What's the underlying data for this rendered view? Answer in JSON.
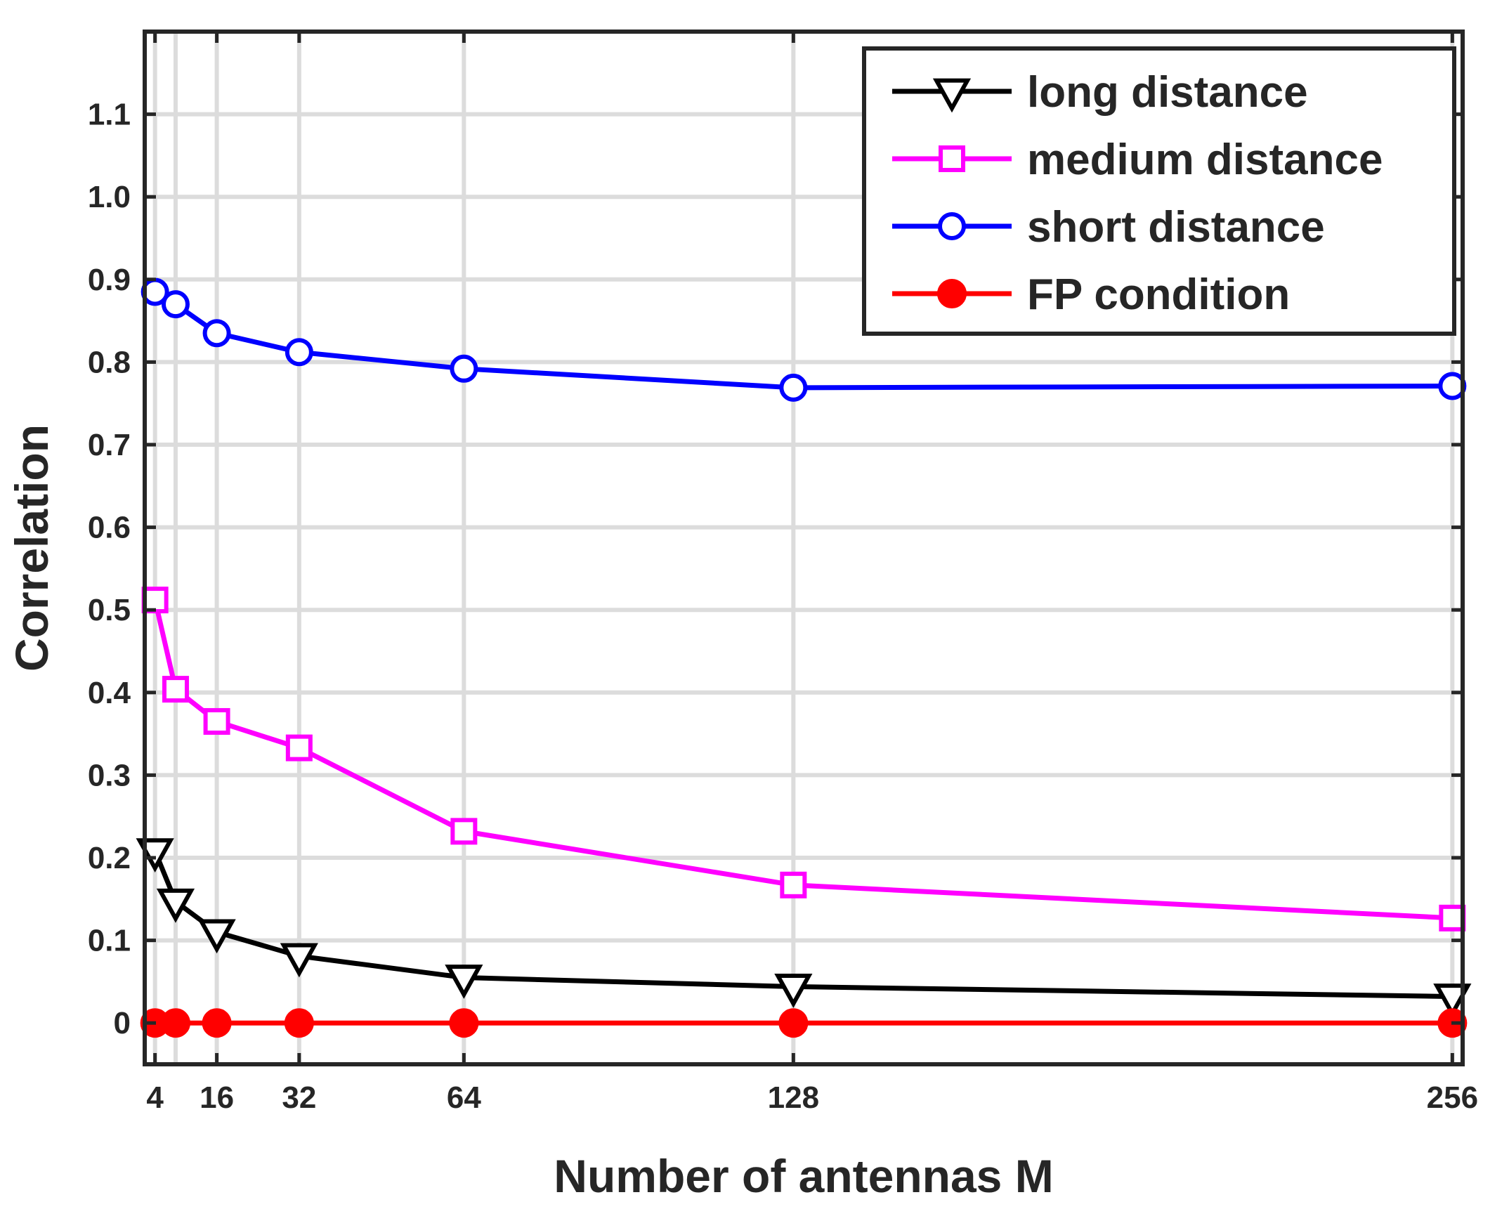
{
  "chart_data": {
    "type": "line",
    "title": "",
    "xlabel": "Number of antennas M",
    "ylabel": "Correlation",
    "xlim": [
      2,
      258
    ],
    "ylim": [
      -0.05,
      1.2
    ],
    "grid": true,
    "legend_position": "top-right",
    "x_ticks": [
      {
        "value": 4,
        "label": "4"
      },
      {
        "value": 16,
        "label": "16"
      },
      {
        "value": 32,
        "label": "32"
      },
      {
        "value": 64,
        "label": "64"
      },
      {
        "value": 128,
        "label": "128"
      },
      {
        "value": 256,
        "label": "256"
      }
    ],
    "x_grid_values": [
      4,
      8,
      16,
      32,
      64,
      128,
      256
    ],
    "y_ticks": [
      {
        "value": 0,
        "label": "0"
      },
      {
        "value": 0.1,
        "label": "0.1"
      },
      {
        "value": 0.2,
        "label": "0.2"
      },
      {
        "value": 0.3,
        "label": "0.3"
      },
      {
        "value": 0.4,
        "label": "0.4"
      },
      {
        "value": 0.5,
        "label": "0.5"
      },
      {
        "value": 0.6,
        "label": "0.6"
      },
      {
        "value": 0.7,
        "label": "0.7"
      },
      {
        "value": 0.8,
        "label": "0.8"
      },
      {
        "value": 0.9,
        "label": "0.9"
      },
      {
        "value": 1.0,
        "label": "1.0"
      },
      {
        "value": 1.1,
        "label": "1.1"
      }
    ],
    "x": [
      4,
      8,
      16,
      32,
      64,
      128,
      256
    ],
    "series": [
      {
        "name": "long distance",
        "color": "#000000",
        "marker": "triangle-down",
        "values": [
          0.208,
          0.147,
          0.11,
          0.081,
          0.055,
          0.044,
          0.032
        ]
      },
      {
        "name": "medium distance",
        "color": "#ff00ff",
        "marker": "square",
        "values": [
          0.512,
          0.404,
          0.365,
          0.333,
          0.232,
          0.167,
          0.127
        ]
      },
      {
        "name": "short distance",
        "color": "#0000ff",
        "marker": "circle",
        "values": [
          0.885,
          0.87,
          0.835,
          0.812,
          0.792,
          0.769,
          0.771
        ]
      },
      {
        "name": "FP condition",
        "color": "#ff0000",
        "marker": "filled-circle",
        "values": [
          0,
          0,
          0,
          0,
          0,
          0,
          0
        ]
      }
    ]
  }
}
